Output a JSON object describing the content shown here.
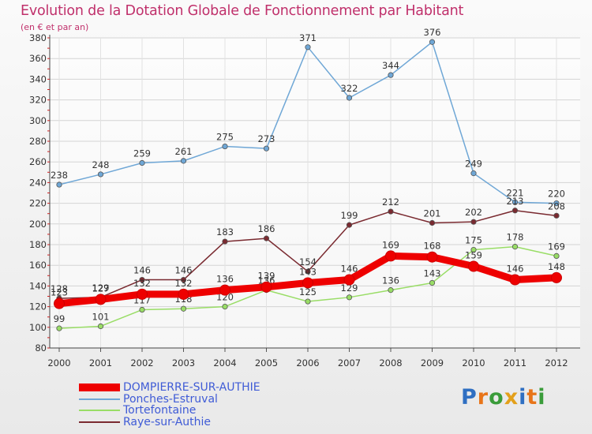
{
  "header": {
    "title": "Evolution de la Dotation Globale de Fonctionnement par Habitant",
    "subtitle": "(en € et par an)"
  },
  "logo": {
    "text": "Proxiti"
  },
  "colors": {
    "title": "#c0306b",
    "legend_text": "#3f5bd6",
    "DOMPIERRE-SUR-AUTHIE": "#ee0000",
    "Ponches-Estruval": "#6fa7d6",
    "Tortefontaine": "#99dd66",
    "Raye-sur-Authie": "#7a2a30"
  },
  "chart_data": {
    "type": "line",
    "title": "Evolution de la Dotation Globale de Fonctionnement par Habitant",
    "subtitle": "(en € et par an)",
    "xlabel": "",
    "ylabel": "",
    "x": [
      "2000",
      "2001",
      "2002",
      "2003",
      "2004",
      "2005",
      "2006",
      "2007",
      "2008",
      "2009",
      "2010",
      "2011",
      "2012"
    ],
    "ylim": [
      80,
      380
    ],
    "yticks": [
      80,
      100,
      120,
      140,
      160,
      180,
      200,
      220,
      240,
      260,
      280,
      300,
      320,
      340,
      360,
      380
    ],
    "grid": true,
    "legend": "bottom-left",
    "series": [
      {
        "name": "Ponches-Estruval",
        "color": "#6fa7d6",
        "values": [
          238,
          248,
          259,
          261,
          275,
          273,
          371,
          322,
          344,
          376,
          249,
          221,
          220
        ]
      },
      {
        "name": "Raye-sur-Authie",
        "color": "#7a2a30",
        "values": [
          128,
          129,
          146,
          146,
          183,
          186,
          154,
          199,
          212,
          201,
          202,
          213,
          208
        ]
      },
      {
        "name": "Tortefontaine",
        "color": "#99dd66",
        "values": [
          99,
          101,
          117,
          118,
          120,
          136,
          125,
          129,
          136,
          143,
          175,
          178,
          169
        ]
      },
      {
        "name": "DOMPIERRE-SUR-AUTHIE",
        "color": "#ee0000",
        "values": [
          123,
          127,
          132,
          132,
          136,
          139,
          143,
          146,
          169,
          168,
          159,
          146,
          148
        ]
      }
    ],
    "legend_order": [
      "DOMPIERRE-SUR-AUTHIE",
      "Ponches-Estruval",
      "Tortefontaine",
      "Raye-sur-Authie"
    ]
  }
}
